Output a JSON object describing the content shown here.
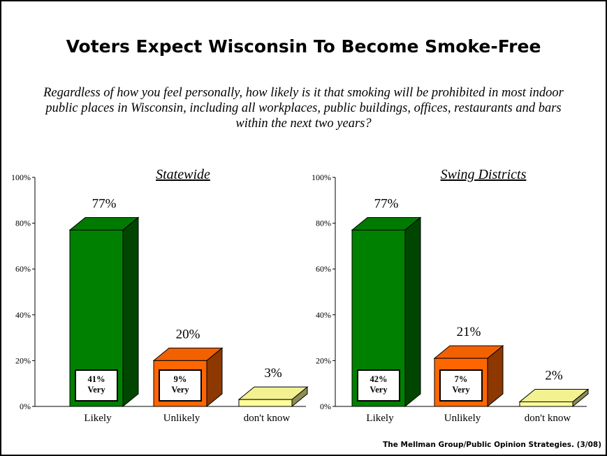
{
  "title": "Voters Expect Wisconsin To Become Smoke-Free",
  "question": "Regardless of how you feel personally, how likely is it that smoking will be prohibited in most indoor public places in Wisconsin, including all workplaces, public buildings, offices, restaurants and bars within the next two years?",
  "source": "The Mellman Group/Public Opinion Strategies. (3/08)",
  "colors": {
    "likely": "#008000",
    "unlikely": "#ff6600",
    "dont_know": "#ffff99"
  },
  "chart_data": [
    {
      "type": "bar",
      "title": "Statewide",
      "categories": [
        "Likely",
        "Unlikely",
        "don't know"
      ],
      "values": [
        77,
        20,
        3
      ],
      "value_labels": [
        "77%",
        "20%",
        "3%"
      ],
      "inner_labels": [
        "41%\nVery",
        "9%\nVery",
        ""
      ],
      "ylim": [
        0,
        100
      ],
      "yticks": [
        "0%",
        "20%",
        "40%",
        "60%",
        "80%",
        "100%"
      ],
      "grid": false
    },
    {
      "type": "bar",
      "title": "Swing Districts",
      "categories": [
        "Likely",
        "Unlikely",
        "don't know"
      ],
      "values": [
        77,
        21,
        2
      ],
      "value_labels": [
        "77%",
        "21%",
        "2%"
      ],
      "inner_labels": [
        "42%\nVery",
        "7%\nVery",
        ""
      ],
      "ylim": [
        0,
        100
      ],
      "yticks": [
        "0%",
        "20%",
        "40%",
        "60%",
        "80%",
        "100%"
      ],
      "grid": false
    }
  ]
}
